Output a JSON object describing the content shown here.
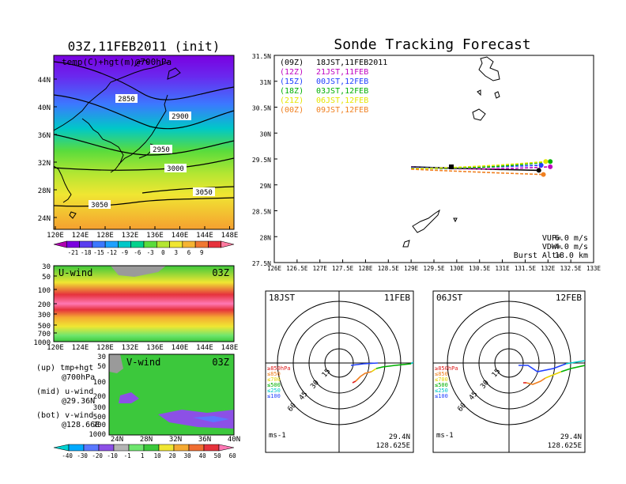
{
  "left": {
    "title": "03Z,11FEB2011 (init)",
    "map": {
      "label": "temp(C)+hgt(m)@700hPa",
      "lat_ticks": [
        "44N",
        "40N",
        "36N",
        "32N",
        "28N",
        "24N"
      ],
      "lon_ticks": [
        "120E",
        "124E",
        "128E",
        "132E",
        "136E",
        "140E",
        "144E",
        "148E"
      ],
      "contours": [
        "2850",
        "2900",
        "2950",
        "3000",
        "3050",
        "3050"
      ],
      "colorbar_labels": [
        "-21",
        "-18",
        "-15",
        "-12",
        "-9",
        "-6",
        "-3",
        "0",
        "3",
        "6",
        "9"
      ],
      "colorbar_colors": [
        "#b000b0",
        "#7a00e0",
        "#5a3ef0",
        "#3c78ff",
        "#1ea0ff",
        "#00c8c8",
        "#00d28c",
        "#5adc3c",
        "#b4e632",
        "#f0e632",
        "#f5b432",
        "#f07832",
        "#e6323c",
        "#ff7aa0"
      ]
    },
    "u_panel": {
      "label": "U-wind",
      "time": "03Z",
      "pressure_ticks": [
        "30",
        "50",
        "100",
        "200",
        "300",
        "500",
        "700",
        "1000"
      ],
      "lon_ticks": [
        "120E",
        "124E",
        "128E",
        "132E",
        "136E",
        "140E",
        "144E",
        "148E"
      ]
    },
    "v_panel": {
      "label": "V-wind",
      "time": "03Z",
      "pressure_ticks": [
        "30",
        "50",
        "100",
        "200",
        "300",
        "500",
        "700",
        "1000"
      ],
      "lat_ticks": [
        "24N",
        "28N",
        "32N",
        "36N",
        "40N"
      ]
    },
    "wind_colorbar": {
      "labels": [
        "-40",
        "-30",
        "-20",
        "-10",
        "-1",
        "1",
        "10",
        "20",
        "30",
        "40",
        "50",
        "60"
      ],
      "colors": [
        "#00d2d2",
        "#00aaff",
        "#5a78ff",
        "#8c50e6",
        "#b4b4b4",
        "#6ee66e",
        "#3cc83c",
        "#f0e632",
        "#f5aa32",
        "#f06e32",
        "#e6323c",
        "#ff78b4"
      ]
    },
    "notes": [
      {
        "tag": "(up)",
        "a": "tmp+hgt",
        "b": "@700hPa"
      },
      {
        "tag": "(mid)",
        "a": "u-wind",
        "b": "@29.36N"
      },
      {
        "tag": "(bot)",
        "a": "v-wind",
        "b": "@128.66E"
      }
    ]
  },
  "tracking": {
    "title": "Sonde Tracking Forecast",
    "launches": [
      {
        "code": "(09Z)",
        "label": "18JST,11FEB2011",
        "color": "#000000"
      },
      {
        "code": "(12Z)",
        "label": "21JST,11FEB",
        "color": "#c000c0"
      },
      {
        "code": "(15Z)",
        "label": "00JST,12FEB",
        "color": "#2040ff"
      },
      {
        "code": "(18Z)",
        "label": "03JST,12FEB",
        "color": "#00b000"
      },
      {
        "code": "(21Z)",
        "label": "06JST,12FEB",
        "color": "#e6e600"
      },
      {
        "code": "(00Z)",
        "label": "09JST,12FEB",
        "color": "#f08020"
      }
    ],
    "lat_ticks": [
      "31.5N",
      "31N",
      "30.5N",
      "30N",
      "29.5N",
      "29N",
      "28.5N",
      "28N",
      "27.5N"
    ],
    "lon_ticks": [
      "126E",
      "126.5E",
      "127E",
      "127.5E",
      "128E",
      "128.5E",
      "129E",
      "129.5E",
      "130E",
      "130.5E",
      "131E",
      "131.5E",
      "132E",
      "132.5E",
      "133E"
    ],
    "params": [
      {
        "k": "VUP=",
        "v": "6.0 m/s"
      },
      {
        "k": "VDW=",
        "v": "-4.0 m/s"
      },
      {
        "k": "Burst Alt=",
        "v": "18.0 km"
      }
    ]
  },
  "hodographs": [
    {
      "time": "18JST",
      "date": "11FEB",
      "lat": "29.4N",
      "lon": "128.625E",
      "units": "ms-1",
      "rings": [
        "15",
        "30",
        "45",
        "60"
      ]
    },
    {
      "time": "06JST",
      "date": "12FEB",
      "lat": "29.4N",
      "lon": "128.625E",
      "units": "ms-1",
      "rings": [
        "15",
        "30",
        "45",
        "60"
      ]
    }
  ],
  "hodo_legend": [
    {
      "label": "≥850hPa",
      "color": "#e02020"
    },
    {
      "label": "≤850",
      "color": "#f08020"
    },
    {
      "label": "≤700",
      "color": "#e6d200"
    },
    {
      "label": "≤500",
      "color": "#00b000"
    },
    {
      "label": "≤250",
      "color": "#00c8c8"
    },
    {
      "label": "≤100",
      "color": "#2040ff"
    }
  ],
  "chart_data": [
    {
      "type": "heatmap",
      "title": "03Z,11FEB2011 (init)",
      "variable": "temp(C)+hgt(m)@700hPa",
      "x_range": [
        "120E",
        "149E"
      ],
      "y_range": [
        "22N",
        "47N"
      ],
      "contour_levels": [
        2850,
        2900,
        2950,
        3000,
        3050
      ],
      "colorbar_ticks": [
        -21,
        -18,
        -15,
        -12,
        -9,
        -6,
        -3,
        0,
        3,
        6,
        9
      ]
    },
    {
      "type": "heatmap",
      "title": "U-wind",
      "x_range": [
        "120E",
        "149E"
      ],
      "y_ticks_hPa": [
        30,
        50,
        100,
        200,
        300,
        500,
        700,
        1000
      ]
    },
    {
      "type": "heatmap",
      "title": "V-wind",
      "x_range": [
        "24N",
        "40N"
      ],
      "y_ticks_hPa": [
        30,
        50,
        100,
        200,
        300,
        500,
        700,
        1000
      ]
    },
    {
      "type": "line",
      "title": "Sonde Tracking Forecast",
      "x_range": [
        126,
        133
      ],
      "y_range": [
        27.5,
        31.5
      ],
      "series": [
        {
          "name": "18JST,11FEB2011",
          "launch": [
            129.0,
            29.33
          ],
          "end": [
            131.8,
            29.28
          ]
        },
        {
          "name": "21JST,11FEB",
          "launch": [
            129.0,
            29.33
          ],
          "end": [
            132.05,
            29.35
          ]
        },
        {
          "name": "00JST,12FEB",
          "launch": [
            129.0,
            29.33
          ],
          "end": [
            131.85,
            29.38
          ]
        },
        {
          "name": "03JST,12FEB",
          "launch": [
            129.0,
            29.33
          ],
          "end": [
            132.05,
            29.45
          ]
        },
        {
          "name": "06JST,12FEB",
          "launch": [
            129.0,
            29.33
          ],
          "end": [
            131.95,
            29.45
          ]
        },
        {
          "name": "09JST,12FEB",
          "launch": [
            129.0,
            29.33
          ],
          "end": [
            131.9,
            29.2
          ]
        }
      ]
    }
  ]
}
